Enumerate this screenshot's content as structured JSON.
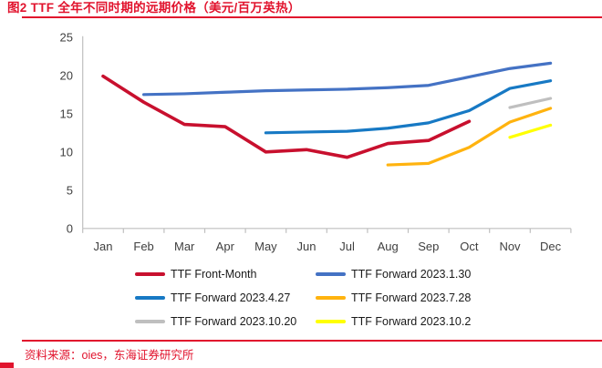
{
  "header": {
    "title": "图2  TTF 全年不同时期的远期价格（美元/百万英热）"
  },
  "footer": {
    "source": "资料来源：oies，东海证券研究所"
  },
  "colors": {
    "accent_red": "#E1132D",
    "axis": "#BFBFBF",
    "tick_label": "#3F3F3F"
  },
  "chart_data": {
    "type": "line",
    "title": "TTF 全年不同时期的远期价格（美元/百万英热）",
    "categories": [
      "Jan",
      "Feb",
      "Mar",
      "Apr",
      "May",
      "Jun",
      "Jul",
      "Aug",
      "Sep",
      "Oct",
      "Nov",
      "Dec"
    ],
    "xlabel": "",
    "ylabel": "",
    "ylim": [
      0,
      25
    ],
    "yticks": [
      0,
      5,
      10,
      15,
      20,
      25
    ],
    "grid": false,
    "legend_position": "bottom",
    "series": [
      {
        "name": "TTF Front-Month",
        "color": "#C8102E",
        "stroke_width": 3.6,
        "x": [
          "Jan",
          "Feb",
          "Mar",
          "Apr",
          "May",
          "Jun",
          "Jul",
          "Aug",
          "Sep",
          "Oct"
        ],
        "values": [
          19.9,
          16.5,
          13.6,
          13.3,
          10.0,
          10.3,
          9.3,
          11.1,
          11.5,
          14.0
        ]
      },
      {
        "name": "TTF Forward 2023.1.30",
        "color": "#4472C4",
        "stroke_width": 3.2,
        "x": [
          "Feb",
          "Mar",
          "Apr",
          "May",
          "Jun",
          "Jul",
          "Aug",
          "Sep",
          "Oct",
          "Nov",
          "Dec"
        ],
        "values": [
          17.5,
          17.6,
          17.8,
          18.0,
          18.1,
          18.2,
          18.4,
          18.7,
          19.8,
          20.9,
          21.6
        ]
      },
      {
        "name": "TTF Forward 2023.4.27",
        "color": "#1779C4",
        "stroke_width": 3.2,
        "x": [
          "May",
          "Jun",
          "Jul",
          "Aug",
          "Sep",
          "Oct",
          "Nov",
          "Dec"
        ],
        "values": [
          12.5,
          12.6,
          12.7,
          13.1,
          13.8,
          15.4,
          18.3,
          19.3
        ]
      },
      {
        "name": "TTF Forward 2023.7.28",
        "color": "#FFB30F",
        "stroke_width": 3.2,
        "x": [
          "Aug",
          "Sep",
          "Oct",
          "Nov",
          "Dec"
        ],
        "values": [
          8.3,
          8.5,
          10.6,
          13.9,
          15.7
        ]
      },
      {
        "name": "TTF Forward 2023.10.20",
        "color": "#BFBFBF",
        "stroke_width": 3.2,
        "x": [
          "Nov",
          "Dec"
        ],
        "values": [
          15.8,
          17.0
        ]
      },
      {
        "name": "TTF Forward 2023.10.2",
        "color": "#FFFF00",
        "stroke_width": 3.2,
        "x": [
          "Nov",
          "Dec"
        ],
        "values": [
          11.9,
          13.5
        ]
      }
    ]
  }
}
